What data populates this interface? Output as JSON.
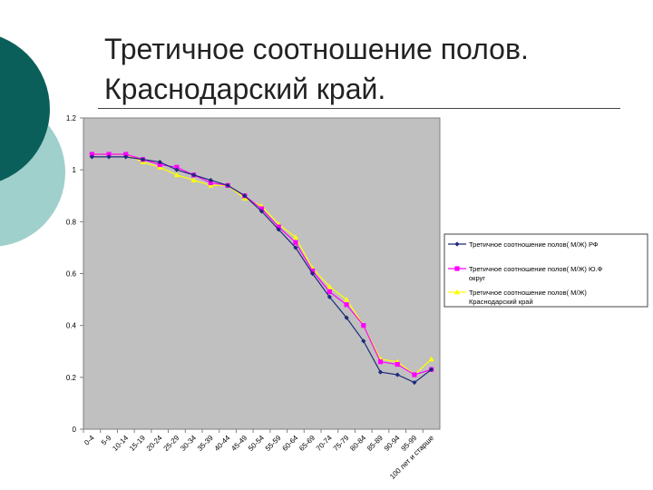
{
  "slide": {
    "title_line1": "Третичное соотношение полов.",
    "title_line2": "Краснодарский край."
  },
  "colors": {
    "deco_dark": "#0b5f5a",
    "deco_light": "#9fd0cc",
    "plot_bg": "#c0c0c0"
  },
  "chart_data": {
    "type": "line",
    "title": "",
    "xlabel": "",
    "ylabel": "",
    "ylim": [
      0,
      1.2
    ],
    "yticks": [
      "0",
      "0.2",
      "0.4",
      "0.6",
      "0.8",
      "1",
      "1.2"
    ],
    "grid": false,
    "legend_position": "right",
    "categories": [
      "0-4",
      "5-9",
      "10-14",
      "15-19",
      "20-24",
      "25-29",
      "30-34",
      "35-39",
      "40-44",
      "45-49",
      "50-54",
      "55-59",
      "60-64",
      "65-69",
      "70-74",
      "75-79",
      "80-84",
      "85-89",
      "90-94",
      "95-99",
      "100 лет и старше"
    ],
    "series": [
      {
        "name": "Третичное соотношение полов( М/Ж) РФ",
        "color": "#1f2a7a",
        "marker": "diamond",
        "values": [
          1.05,
          1.05,
          1.05,
          1.04,
          1.03,
          1.0,
          0.98,
          0.96,
          0.94,
          0.9,
          0.84,
          0.77,
          0.7,
          0.6,
          0.51,
          0.43,
          0.34,
          0.22,
          0.21,
          0.18,
          0.23
        ]
      },
      {
        "name": "Третичное соотношение полов( М/Ж) Ю.Ф округ",
        "color": "#ff00ff",
        "marker": "square",
        "values": [
          1.06,
          1.06,
          1.06,
          1.04,
          1.02,
          1.01,
          0.98,
          0.95,
          0.94,
          0.9,
          0.85,
          0.78,
          0.72,
          0.61,
          0.53,
          0.48,
          0.4,
          0.26,
          0.25,
          0.21,
          0.23
        ]
      },
      {
        "name": "Третичное соотношение полов( М/Ж) Краснодарский край",
        "color": "#ffff00",
        "marker": "triangle",
        "values": [
          1.06,
          1.06,
          1.06,
          1.03,
          1.01,
          0.98,
          0.96,
          0.94,
          0.94,
          0.89,
          0.86,
          0.79,
          0.74,
          0.62,
          0.55,
          0.5,
          0.4,
          0.27,
          0.26,
          0.21,
          0.27
        ]
      }
    ]
  }
}
